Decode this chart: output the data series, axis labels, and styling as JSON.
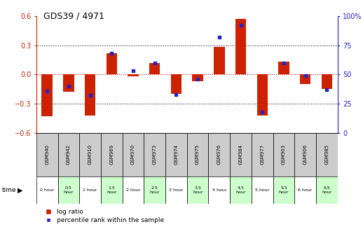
{
  "title": "GDS39 / 4971",
  "gsm_labels": [
    "GSM940",
    "GSM942",
    "GSM910",
    "GSM969",
    "GSM970",
    "GSM973",
    "GSM974",
    "GSM975",
    "GSM976",
    "GSM984",
    "GSM977",
    "GSM903",
    "GSM906",
    "GSM985"
  ],
  "time_labels": [
    "0 hour",
    "0.5\nhour",
    "1 hour",
    "1.5\nhour",
    "2 hour",
    "2.5\nhour",
    "3 hour",
    "3.5\nhour",
    "4 hour",
    "4.5\nhour",
    "5 hour",
    "5.5\nhour",
    "6 hour",
    "6.5\nhour"
  ],
  "log_ratio": [
    -0.43,
    -0.18,
    -0.42,
    0.22,
    -0.02,
    0.12,
    -0.2,
    -0.07,
    0.28,
    0.57,
    -0.42,
    0.13,
    -0.1,
    -0.15
  ],
  "percentile": [
    36,
    40,
    32,
    68,
    53,
    60,
    33,
    46,
    82,
    92,
    18,
    60,
    49,
    37
  ],
  "ylim_left": [
    -0.6,
    0.6
  ],
  "ylim_right": [
    0,
    100
  ],
  "yticks_left": [
    -0.6,
    -0.3,
    0.0,
    0.3,
    0.6
  ],
  "yticks_right": [
    0,
    25,
    50,
    75,
    100
  ],
  "bar_color": "#cc2200",
  "dot_color": "#2222cc",
  "bg_color": "#ffffff",
  "left_axis_color": "#cc2200",
  "right_axis_color": "#2222cc",
  "zero_line_color": "#dd0000",
  "time_bg_colors": [
    "#ffffff",
    "#ccffcc",
    "#ffffff",
    "#ccffcc",
    "#ffffff",
    "#ccffcc",
    "#ffffff",
    "#ccffcc",
    "#ffffff",
    "#ccffcc",
    "#ffffff",
    "#ccffcc",
    "#ffffff",
    "#ccffcc"
  ],
  "gsm_bg_color": "#cccccc",
  "legend_items": [
    "log ratio",
    "percentile rank within the sample"
  ]
}
